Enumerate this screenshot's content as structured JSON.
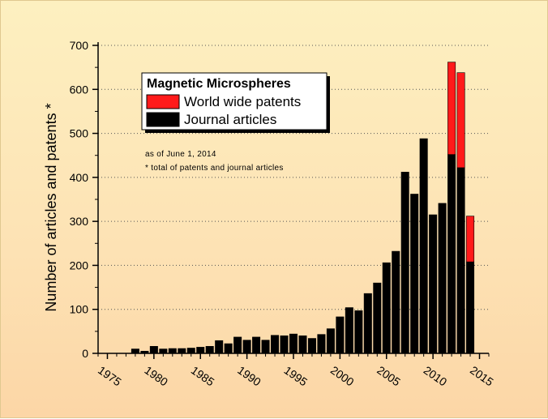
{
  "chart_data": {
    "type": "bar",
    "stacked": true,
    "title": "",
    "xlabel": "",
    "ylabel": "Number of articles and patents *",
    "xlim": [
      1974,
      2016
    ],
    "ylim": [
      0,
      700
    ],
    "x_ticks": [
      1975,
      1980,
      1985,
      1990,
      1995,
      2000,
      2005,
      2010,
      2015
    ],
    "y_ticks": [
      0,
      100,
      200,
      300,
      400,
      500,
      600,
      700
    ],
    "grid": "horizontal dotted",
    "legend": {
      "title": "Magnetic Microspheres",
      "placement": "top-left",
      "entries": [
        "World wide patents",
        "Journal articles"
      ]
    },
    "annotations": [
      "as of June 1, 2014",
      "* total of patents and journal articles"
    ],
    "x": [
      1978,
      1979,
      1980,
      1981,
      1982,
      1983,
      1984,
      1985,
      1986,
      1987,
      1988,
      1989,
      1990,
      1991,
      1992,
      1993,
      1994,
      1995,
      1996,
      1997,
      1998,
      1999,
      2000,
      2001,
      2002,
      2003,
      2004,
      2005,
      2006,
      2007,
      2008,
      2009,
      2010,
      2011,
      2012,
      2013,
      2014
    ],
    "series": [
      {
        "name": "Journal articles",
        "color": "#000000",
        "values": [
          10,
          5,
          16,
          10,
          11,
          11,
          12,
          14,
          16,
          29,
          22,
          37,
          30,
          37,
          30,
          41,
          40,
          44,
          40,
          34,
          43,
          56,
          83,
          104,
          97,
          136,
          160,
          206,
          232,
          412,
          362,
          488,
          315,
          341,
          452,
          422,
          208
        ]
      },
      {
        "name": "World wide patents",
        "color": "#ff1a1a",
        "values": [
          0,
          0,
          0,
          0,
          0,
          0,
          0,
          0,
          0,
          0,
          0,
          0,
          0,
          0,
          0,
          0,
          0,
          0,
          0,
          0,
          0,
          0,
          0,
          0,
          0,
          0,
          0,
          0,
          0,
          0,
          0,
          0,
          0,
          0,
          210,
          216,
          104
        ]
      }
    ]
  }
}
